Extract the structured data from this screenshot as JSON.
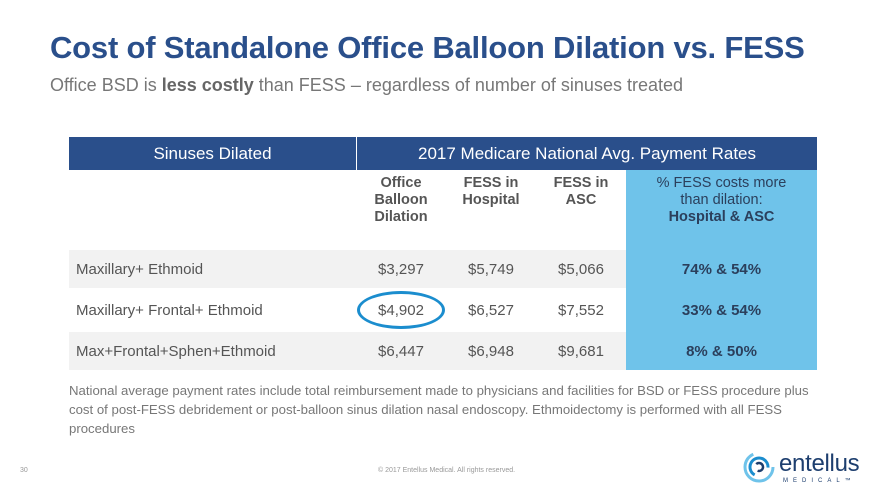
{
  "title": "Cost of Standalone Office Balloon Dilation vs. FESS",
  "subtitle": {
    "pre": "Office BSD is ",
    "bold": "less costly",
    "post": " than FESS – regardless of number of sinuses treated"
  },
  "table": {
    "header_left": "Sinuses Dilated",
    "header_right": "2017 Medicare National Avg. Payment Rates",
    "columns": [
      {
        "lines": [
          "Office",
          "Balloon",
          "Dilation"
        ]
      },
      {
        "lines": [
          "FESS in",
          "Hospital"
        ]
      },
      {
        "lines": [
          "FESS in",
          "ASC"
        ]
      },
      {
        "lines": [
          "% FESS costs more",
          "than dilation:"
        ],
        "bold_line": "Hospital & ASC"
      }
    ],
    "rows": [
      {
        "label": "Maxillary+ Ethmoid",
        "office": "$3,297",
        "hospital": "$5,749",
        "asc": "$5,066",
        "pct": "74% & 54%"
      },
      {
        "label": "Maxillary+ Frontal+ Ethmoid",
        "office": "$4,902",
        "hospital": "$6,527",
        "asc": "$7,552",
        "pct": "33% & 54%"
      },
      {
        "label": "Max+Frontal+Sphen+Ethmoid",
        "office": "$6,447",
        "hospital": "$6,948",
        "asc": "$9,681",
        "pct": "8% &  50%"
      }
    ]
  },
  "note": "National average payment rates include total reimbursement made to physicians and facilities for BSD or FESS procedure plus cost of post-FESS debridement or post-balloon sinus dilation nasal endoscopy. Ethmoidectomy is performed with all FESS procedures",
  "footer": {
    "page_number": "30",
    "copyright": "© 2017 Entellus Medical. All rights reserved.",
    "logo_word": "entellus",
    "logo_sub": "MEDICAL™"
  },
  "colors": {
    "title": "#2a4f8b",
    "header_bg": "#2a4f8b",
    "highlight": "#6fc3ea",
    "ring": "#1b8dce"
  }
}
